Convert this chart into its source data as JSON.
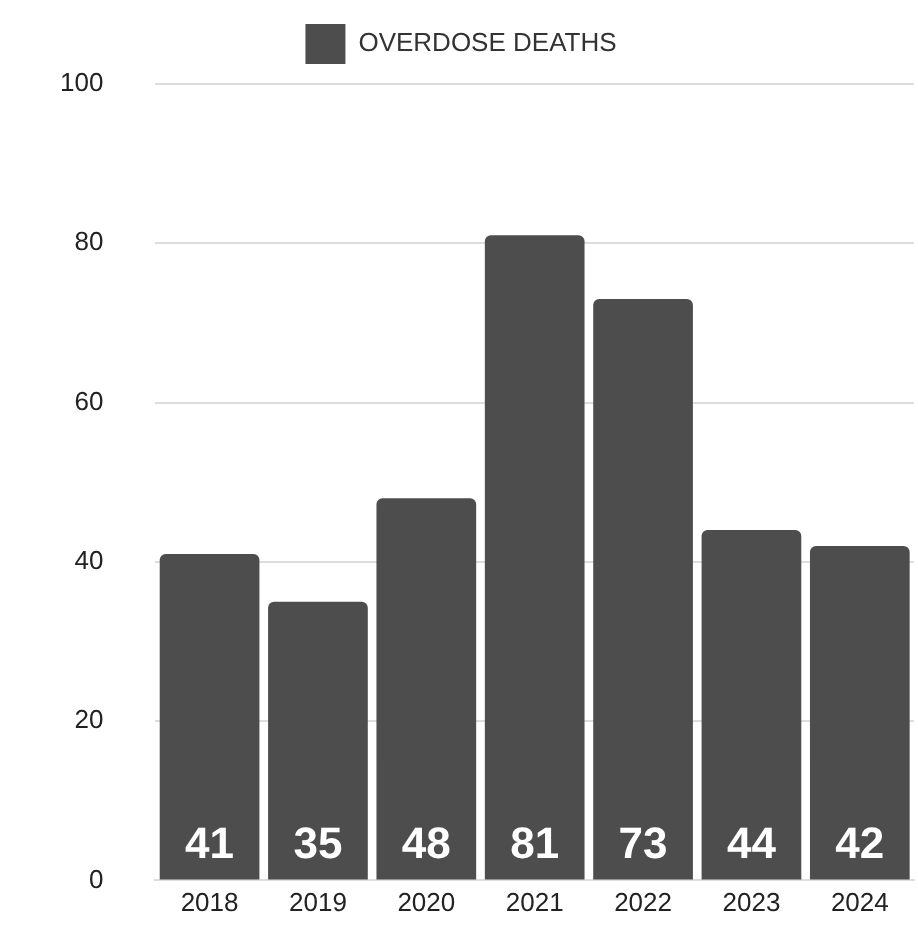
{
  "chart_data": {
    "type": "bar",
    "categories": [
      "2018",
      "2019",
      "2020",
      "2021",
      "2022",
      "2023",
      "2024"
    ],
    "series": [
      {
        "name": "OVERDOSE DEATHS",
        "color": "#4d4d4d",
        "values": [
          41,
          35,
          48,
          81,
          73,
          44,
          42
        ]
      }
    ],
    "ylim": [
      0,
      100
    ],
    "yticks": [
      0,
      20,
      40,
      60,
      80,
      100
    ],
    "grid": "y",
    "legend": "top",
    "data_labels": true
  }
}
